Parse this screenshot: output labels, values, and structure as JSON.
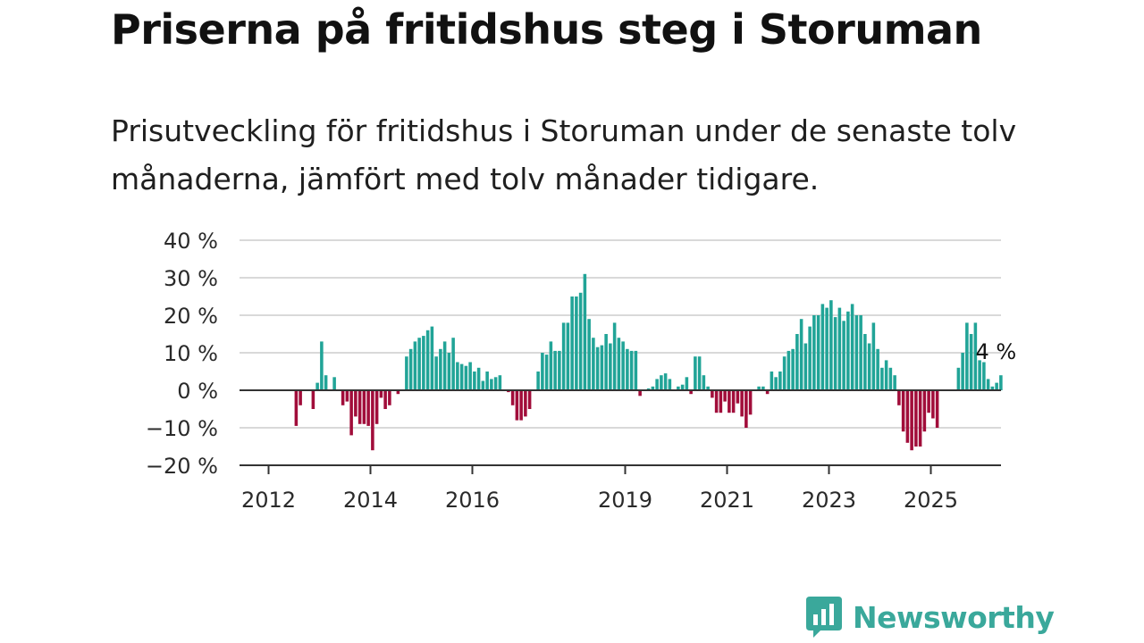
{
  "title": "Priserna på fritidshus steg i Storuman",
  "subtitle": "Prisutveckling för fritidshus i Storuman under de senaste tolv månaderna, jämfört med tolv månader tidigare.",
  "logo_text": "Newsworthy",
  "colors": {
    "positive": "#21a497",
    "negative": "#a10d3a",
    "gridline": "#d9d9d9",
    "axis": "#333333",
    "brand": "#3aa89b"
  },
  "chart_data": {
    "type": "bar",
    "frequency": "monthly",
    "start": "2012-01",
    "ylim": [
      -20,
      40
    ],
    "yticks": [
      40,
      30,
      20,
      10,
      0,
      -10,
      -20
    ],
    "ytick_labels": [
      "40 %",
      "30 %",
      "20 %",
      "10 %",
      "0 %",
      "−10 %",
      "−20 %"
    ],
    "xticks": [
      "2012",
      "2014",
      "2016",
      "2019",
      "2021",
      "2023",
      "2025"
    ],
    "annotation": "4 %",
    "values": [
      0,
      0,
      0,
      0,
      0,
      0,
      -9.5,
      -4,
      0,
      0,
      -5,
      2,
      13,
      4,
      0,
      3.5,
      0,
      -4,
      -3,
      -12,
      -7,
      -9,
      -9,
      -9.5,
      -16,
      -9,
      -2,
      -5,
      -4,
      0,
      -1,
      0,
      9,
      11,
      13,
      14,
      14.5,
      16,
      17,
      9,
      11,
      13,
      10,
      14,
      7.5,
      7,
      6.5,
      7.5,
      5,
      6,
      2.5,
      5,
      3,
      3.5,
      4,
      0,
      -0.5,
      -4,
      -8,
      -8,
      -7,
      -5,
      0,
      5,
      10,
      9.5,
      13,
      10.5,
      10.5,
      18,
      18,
      25,
      25,
      26,
      31,
      19,
      14,
      11.5,
      12,
      15,
      12.5,
      18,
      14,
      13,
      11,
      10.5,
      10.5,
      -1.5,
      0,
      0.5,
      1,
      3,
      4,
      4.5,
      3,
      0,
      1,
      1.5,
      3.5,
      -1,
      9,
      9,
      4,
      1,
      -2,
      -6,
      -6,
      -3,
      -6,
      -6,
      -3.5,
      -7,
      -10,
      -6.5,
      0,
      1,
      1,
      -1,
      5,
      3.5,
      5,
      9,
      10.5,
      11,
      15,
      19,
      12.5,
      17,
      20,
      20,
      23,
      22,
      24,
      19.5,
      22,
      18.5,
      21,
      23,
      20,
      20,
      15,
      12.5,
      18,
      11,
      6,
      8,
      6,
      4,
      -4,
      -11,
      -14,
      -16,
      -15,
      -15,
      -11,
      -6,
      -7.5,
      -10,
      0,
      0,
      0,
      0,
      6,
      10,
      18,
      15,
      18,
      8,
      7.5,
      3,
      1,
      2,
      4
    ]
  }
}
